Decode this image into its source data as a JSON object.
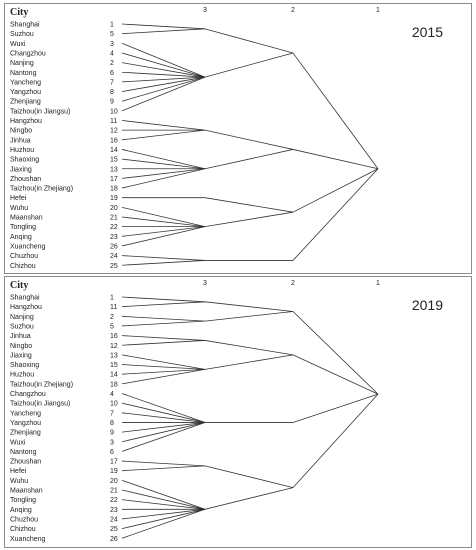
{
  "header": {
    "city": "City",
    "levels": [
      "3",
      "2",
      "1"
    ]
  },
  "panels": [
    {
      "year": "2015",
      "leaves": [
        {
          "city": "Shanghai",
          "id": "1"
        },
        {
          "city": "Suzhou",
          "id": "5"
        },
        {
          "city": "Wuxi",
          "id": "3"
        },
        {
          "city": "Changzhou",
          "id": "4"
        },
        {
          "city": "Nanjing",
          "id": "2"
        },
        {
          "city": "Nantong",
          "id": "6"
        },
        {
          "city": "Yancheng",
          "id": "7"
        },
        {
          "city": "Yangzhou",
          "id": "8"
        },
        {
          "city": "Zhenjiang",
          "id": "9"
        },
        {
          "city": "Taizhou(in Jiangsu)",
          "id": "10"
        },
        {
          "city": "Hangzhou",
          "id": "11"
        },
        {
          "city": "Ningbo",
          "id": "12"
        },
        {
          "city": "Jinhua",
          "id": "16"
        },
        {
          "city": "Huzhou",
          "id": "14"
        },
        {
          "city": "Shaoxing",
          "id": "15"
        },
        {
          "city": "Jiaxing",
          "id": "13"
        },
        {
          "city": "Zhoushan",
          "id": "17"
        },
        {
          "city": "Taizhou(in Zhejiang)",
          "id": "18"
        },
        {
          "city": "Hefei",
          "id": "19"
        },
        {
          "city": "Wuhu",
          "id": "20"
        },
        {
          "city": "Maanshan",
          "id": "21"
        },
        {
          "city": "Tongling",
          "id": "22"
        },
        {
          "city": "Anqing",
          "id": "23"
        },
        {
          "city": "Xuancheng",
          "id": "26"
        },
        {
          "city": "Chuzhou",
          "id": "24"
        },
        {
          "city": "Chizhou",
          "id": "25"
        }
      ],
      "clusters3": [
        [
          0,
          1
        ],
        [
          2,
          3,
          4,
          5,
          6,
          7,
          8,
          9
        ],
        [
          10,
          11,
          12
        ],
        [
          13,
          14,
          15,
          16,
          17
        ],
        [
          18
        ],
        [
          19,
          20,
          21,
          22,
          23
        ],
        [
          24,
          25
        ]
      ],
      "clusters2": [
        [
          0,
          1
        ],
        [
          2,
          3
        ],
        [
          4,
          5
        ],
        [
          6
        ]
      ]
    },
    {
      "year": "2019",
      "leaves": [
        {
          "city": "Shanghai",
          "id": "1"
        },
        {
          "city": "Hangzhou",
          "id": "11"
        },
        {
          "city": "Nanjing",
          "id": "2"
        },
        {
          "city": "Suzhou",
          "id": "5"
        },
        {
          "city": "Jinhua",
          "id": "16"
        },
        {
          "city": "Ningbo",
          "id": "12"
        },
        {
          "city": "Jiaxing",
          "id": "13"
        },
        {
          "city": "Shaoxing",
          "id": "15"
        },
        {
          "city": "Huzhou",
          "id": "14"
        },
        {
          "city": "Taizhou(in Zhejiang)",
          "id": "18"
        },
        {
          "city": "Changzhou",
          "id": "4"
        },
        {
          "city": "Taizhou(in Jiangsu)",
          "id": "10"
        },
        {
          "city": "Yancheng",
          "id": "7"
        },
        {
          "city": "Yangzhou",
          "id": "8"
        },
        {
          "city": "Zhenjiang",
          "id": "9"
        },
        {
          "city": "Wuxi",
          "id": "3"
        },
        {
          "city": "Nantong",
          "id": "6"
        },
        {
          "city": "Zhoushan",
          "id": "17"
        },
        {
          "city": "Hefei",
          "id": "19"
        },
        {
          "city": "Wuhu",
          "id": "20"
        },
        {
          "city": "Maanshan",
          "id": "21"
        },
        {
          "city": "Tongling",
          "id": "22"
        },
        {
          "city": "Anqing",
          "id": "23"
        },
        {
          "city": "Chuzhou",
          "id": "24"
        },
        {
          "city": "Chizhou",
          "id": "25"
        },
        {
          "city": "Xuancheng",
          "id": "26"
        }
      ],
      "clusters3": [
        [
          0,
          1
        ],
        [
          2,
          3
        ],
        [
          4,
          5
        ],
        [
          6,
          7,
          8,
          9
        ],
        [
          10,
          11,
          12,
          13,
          14,
          15,
          16
        ],
        [
          17,
          18
        ],
        [
          19,
          20,
          21,
          22,
          23,
          24,
          25
        ]
      ],
      "clusters2": [
        [
          0,
          1
        ],
        [
          2,
          3
        ],
        [
          4
        ],
        [
          5,
          6
        ]
      ]
    }
  ]
}
